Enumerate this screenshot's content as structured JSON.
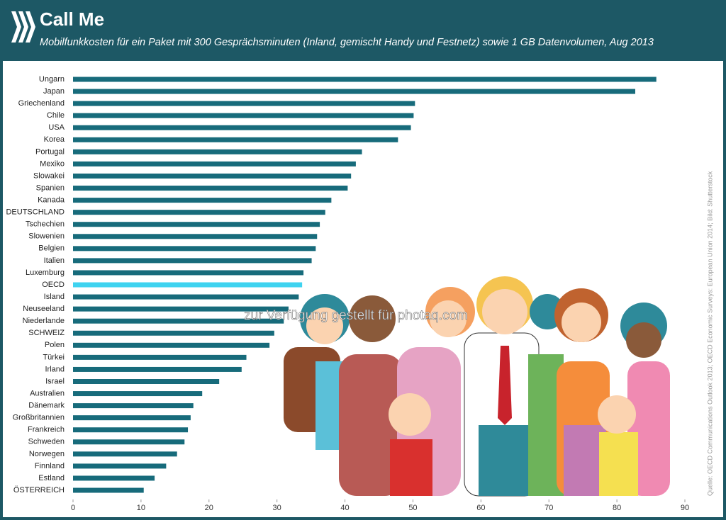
{
  "chart_data": {
    "type": "barh",
    "title": "Call Me",
    "subtitle": "Mobilfunkkosten für ein Paket mit 300 Gesprächsminuten (Inland, gemischt Handy und Festnetz) sowie 1 GB Datenvolumen, Aug 2013",
    "watermark": "zur Verfügung gestellt für photaq.com",
    "source": "Quelle: OECD Communications Outlook 2013; OECD Economic Surveys: European Union 2014; Bild: Shutterstock",
    "categories": [
      "Ungarn",
      "Japan",
      "Griechenland",
      "Chile",
      "USA",
      "Korea",
      "Portugal",
      "Mexiko",
      "Slowakei",
      "Spanien",
      "Kanada",
      "DEUTSCHLAND",
      "Tschechien",
      "Slowenien",
      "Belgien",
      "Italien",
      "Luxemburg",
      "OECD",
      "Island",
      "Neuseeland",
      "Niederlande",
      "SCHWEIZ",
      "Polen",
      "Türkei",
      "Irland",
      "Israel",
      "Australien",
      "Dänemark",
      "Großbritannien",
      "Frankreich",
      "Schweden",
      "Norwegen",
      "Finnland",
      "Estland",
      "ÖSTERREICH"
    ],
    "values": [
      85.8,
      82.7,
      50.3,
      50.1,
      49.7,
      47.8,
      42.5,
      41.6,
      40.9,
      40.4,
      38.0,
      37.1,
      36.3,
      35.9,
      35.7,
      35.1,
      33.9,
      33.7,
      33.2,
      31.7,
      31.0,
      29.6,
      28.9,
      25.5,
      24.8,
      21.5,
      19.0,
      17.7,
      17.3,
      16.9,
      16.4,
      15.3,
      13.7,
      12.0,
      10.4
    ],
    "color": "#176b7b",
    "highlight": {
      "category": "OECD",
      "color": "#3fd3f0"
    },
    "xlim": [
      0,
      90
    ],
    "xticks": [
      0,
      10,
      20,
      30,
      40,
      50,
      60,
      70,
      80,
      90
    ]
  }
}
